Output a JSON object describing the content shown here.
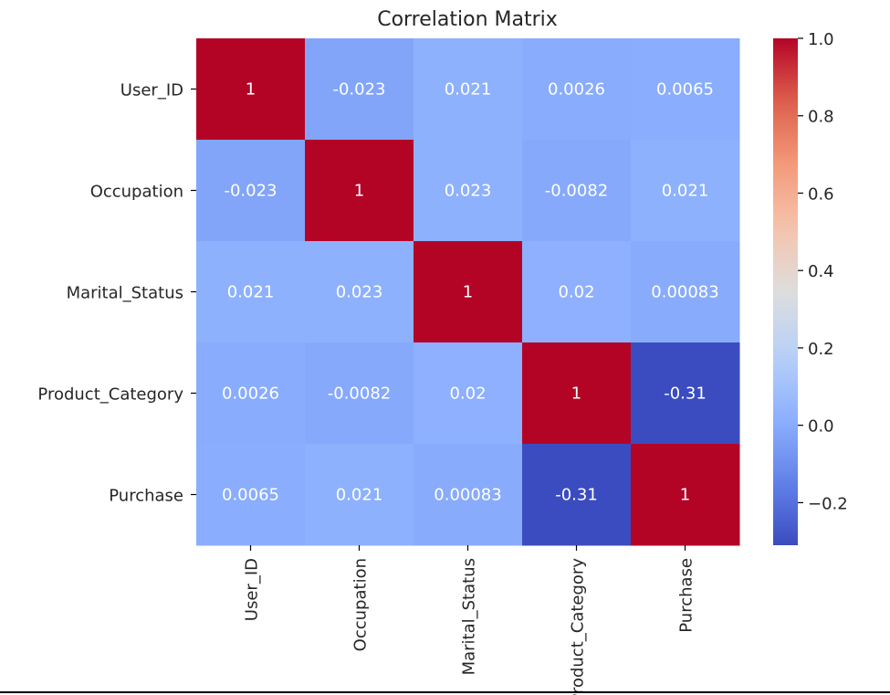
{
  "chart_data": {
    "type": "heatmap",
    "title": "Correlation Matrix",
    "row_labels": [
      "User_ID",
      "Occupation",
      "Marital_Status",
      "Product_Category",
      "Purchase"
    ],
    "col_labels": [
      "User_ID",
      "Occupation",
      "Marital_Status",
      "Product_Category",
      "Purchase"
    ],
    "values": [
      [
        1,
        -0.023,
        0.021,
        0.0026,
        0.0065
      ],
      [
        -0.023,
        1,
        0.023,
        -0.0082,
        0.021
      ],
      [
        0.021,
        0.023,
        1,
        0.02,
        0.00083
      ],
      [
        0.0026,
        -0.0082,
        0.02,
        1,
        -0.31
      ],
      [
        0.0065,
        0.021,
        0.00083,
        -0.31,
        1
      ]
    ],
    "cell_labels": [
      [
        "1",
        "-0.023",
        "0.021",
        "0.0026",
        "0.0065"
      ],
      [
        "-0.023",
        "1",
        "0.023",
        "-0.0082",
        "0.021"
      ],
      [
        "0.021",
        "0.023",
        "1",
        "0.02",
        "0.00083"
      ],
      [
        "0.0026",
        "-0.0082",
        "0.02",
        "1",
        "-0.31"
      ],
      [
        "0.0065",
        "0.021",
        "0.00083",
        "-0.31",
        "1"
      ]
    ],
    "colormap": "coolwarm",
    "colormap_stops": [
      "#3b4cc0",
      "#dddddd",
      "#b40426"
    ],
    "vmin": -0.31,
    "vmax": 1.0,
    "colorbar": {
      "ticks": [
        1.0,
        0.8,
        0.6,
        0.4,
        0.2,
        0.0,
        -0.2
      ],
      "tick_labels": [
        "1.0",
        "0.8",
        "0.6",
        "0.4",
        "0.2",
        "0.0",
        "−0.2"
      ]
    },
    "annotation_colors": {
      "on_dark": "#ffffff",
      "on_light": "#262626"
    }
  }
}
